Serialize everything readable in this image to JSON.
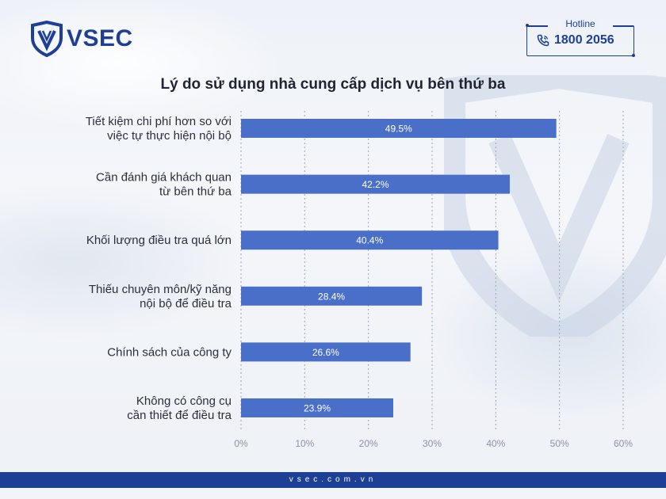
{
  "brand": {
    "name": "VSEC",
    "color": "#1e3f96"
  },
  "hotline": {
    "label": "Hotline",
    "number": "1800 2056"
  },
  "footer": {
    "website": "vsec.com.vn"
  },
  "chart_data": {
    "type": "bar",
    "orientation": "horizontal",
    "title": "Lý do sử dụng nhà cung cấp dịch vụ bên thứ ba",
    "categories": [
      [
        "Tiết kiệm chi phí hơn so với",
        "việc tự thực hiện nội bộ"
      ],
      [
        "Cần đánh giá khách quan",
        "từ bên thứ ba"
      ],
      [
        "Khối lượng điều tra quá lớn"
      ],
      [
        "Thiếu chuyên môn/kỹ năng",
        "nội bộ để điều tra"
      ],
      [
        "Chính sách của công ty"
      ],
      [
        "Không có công cụ",
        "cần thiết để điều tra"
      ]
    ],
    "values": [
      49.5,
      42.2,
      40.4,
      28.4,
      26.6,
      23.9
    ],
    "value_labels": [
      "49.5%",
      "42.2%",
      "40.4%",
      "28.4%",
      "26.6%",
      "23.9%"
    ],
    "xlim": [
      0,
      60
    ],
    "xticks": [
      "0%",
      "10%",
      "20%",
      "30%",
      "40%",
      "50%",
      "60%"
    ],
    "grid": "vertical-dashed",
    "bar_color": "#4a6fc9"
  }
}
